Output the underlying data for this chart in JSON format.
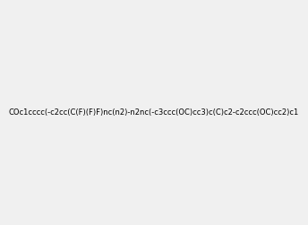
{
  "smiles": "COc1cccc(-c2cc(C(F)(F)F)nc(n2)-n2nc(-c3ccc(OC)cc3)c(C)c2-c2ccc(OC)cc2)c1",
  "image_size": 300,
  "background_color": "#f0f0f0",
  "title": ""
}
